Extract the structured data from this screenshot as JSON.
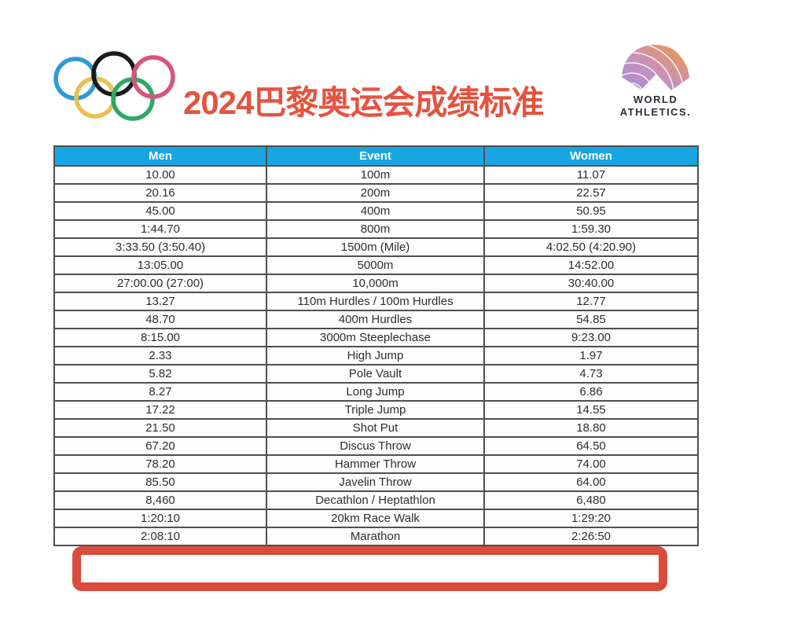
{
  "header": {
    "title": "2024巴黎奥运会成绩标准",
    "title_color": "#e4543f",
    "olympic_rings_icon": "olympic-rings-logo",
    "world_athletics_icon": "world-athletics-logo",
    "world_athletics_line1": "WORLD",
    "world_athletics_line2": "ATHLETICS."
  },
  "table": {
    "headers": [
      "Men",
      "Event",
      "Women"
    ],
    "header_bg": "#18a6e3",
    "header_text_color": "#ffffff",
    "grid_color": "#4f4f4f",
    "rows": [
      [
        "10.00",
        "100m",
        "11.07"
      ],
      [
        "20.16",
        "200m",
        "22.57"
      ],
      [
        "45.00",
        "400m",
        "50.95"
      ],
      [
        "1:44.70",
        "800m",
        "1:59.30"
      ],
      [
        "3:33.50 (3:50.40)",
        "1500m (Mile)",
        "4:02.50 (4:20.90)"
      ],
      [
        "13:05.00",
        "5000m",
        "14:52.00"
      ],
      [
        "27:00.00 (27:00)",
        "10,000m",
        "30:40.00"
      ],
      [
        "13.27",
        "110m Hurdles / 100m Hurdles",
        "12.77"
      ],
      [
        "48.70",
        "400m Hurdles",
        "54.85"
      ],
      [
        "8:15.00",
        "3000m Steeplechase",
        "9:23.00"
      ],
      [
        "2.33",
        "High Jump",
        "1.97"
      ],
      [
        "5.82",
        "Pole Vault",
        "4.73"
      ],
      [
        "8.27",
        "Long Jump",
        "6.86"
      ],
      [
        "17.22",
        "Triple Jump",
        "14.55"
      ],
      [
        "21.50",
        "Shot Put",
        "18.80"
      ],
      [
        "67.20",
        "Discus Throw",
        "64.50"
      ],
      [
        "78.20",
        "Hammer Throw",
        "74.00"
      ],
      [
        "85.50",
        "Javelin Throw",
        "64.00"
      ],
      [
        "8,460",
        "Decathlon / Heptathlon",
        "6,480"
      ],
      [
        "1:20:10",
        "20km Race Walk",
        "1:29:20"
      ],
      [
        "2:08:10",
        "Marathon",
        "2:26:50"
      ]
    ]
  },
  "annotation": {
    "highlight_border_color": "#d94b3b",
    "highlighted_event": "Marathon"
  },
  "ring_colors": {
    "blue": "#2f9ad6",
    "black": "#1a1a1a",
    "red": "#d6557e",
    "yellow": "#e6c24f",
    "green": "#2ea865"
  }
}
